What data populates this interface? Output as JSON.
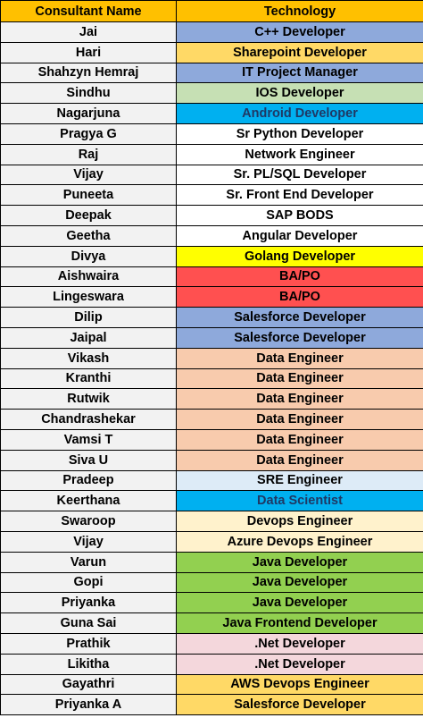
{
  "header": {
    "col_name": "Consultant Name",
    "col_tech": "Technology",
    "bg": "#ffc000"
  },
  "rows": [
    {
      "name": "Jai",
      "tech": "C++ Developer",
      "bg": "#8ea9db",
      "fg": "#000000"
    },
    {
      "name": "Hari",
      "tech": "Sharepoint Developer",
      "bg": "#ffd966",
      "fg": "#000000"
    },
    {
      "name": "Shahzyn Hemraj",
      "tech": "IT Project Manager",
      "bg": "#8ea9db",
      "fg": "#000000"
    },
    {
      "name": "Sindhu",
      "tech": "IOS Developer",
      "bg": "#c6e0b4",
      "fg": "#000000"
    },
    {
      "name": "Nagarjuna",
      "tech": "Android Developer",
      "bg": "#00b0f0",
      "fg": "#1f3864"
    },
    {
      "name": "Pragya G",
      "tech": "Sr Python Developer",
      "bg": "#ffffff",
      "fg": "#000000"
    },
    {
      "name": "Raj",
      "tech": "Network Engineer",
      "bg": "#ffffff",
      "fg": "#000000"
    },
    {
      "name": "Vijay",
      "tech": "Sr. PL/SQL Developer",
      "bg": "#ffffff",
      "fg": "#000000"
    },
    {
      "name": "Puneeta",
      "tech": "Sr. Front End Developer",
      "bg": "#ffffff",
      "fg": "#000000"
    },
    {
      "name": "Deepak",
      "tech": "SAP BODS",
      "bg": "#ffffff",
      "fg": "#000000"
    },
    {
      "name": "Geetha",
      "tech": "Angular Developer",
      "bg": "#ffffff",
      "fg": "#000000"
    },
    {
      "name": "Divya",
      "tech": "Golang Developer",
      "bg": "#ffff00",
      "fg": "#000000"
    },
    {
      "name": "Aishwaira",
      "tech": "BA/PO",
      "bg": "#ff5050",
      "fg": "#000000"
    },
    {
      "name": "Lingeswara",
      "tech": "BA/PO",
      "bg": "#ff5050",
      "fg": "#000000"
    },
    {
      "name": "Dilip",
      "tech": "Salesforce Developer",
      "bg": "#8ea9db",
      "fg": "#000000"
    },
    {
      "name": "Jaipal",
      "tech": "Salesforce Developer",
      "bg": "#8ea9db",
      "fg": "#000000"
    },
    {
      "name": "Vikash",
      "tech": "Data Engineer",
      "bg": "#f8cbad",
      "fg": "#000000"
    },
    {
      "name": "Kranthi",
      "tech": "Data Engineer",
      "bg": "#f8cbad",
      "fg": "#000000"
    },
    {
      "name": "Rutwik",
      "tech": "Data Engineer",
      "bg": "#f8cbad",
      "fg": "#000000"
    },
    {
      "name": "Chandrashekar",
      "tech": "Data Engineer",
      "bg": "#f8cbad",
      "fg": "#000000"
    },
    {
      "name": "Vamsi T",
      "tech": "Data Engineer",
      "bg": "#f8cbad",
      "fg": "#000000"
    },
    {
      "name": "Siva U",
      "tech": "Data Engineer",
      "bg": "#f8cbad",
      "fg": "#000000"
    },
    {
      "name": "Pradeep",
      "tech": "SRE Engineer",
      "bg": "#ddebf7",
      "fg": "#000000"
    },
    {
      "name": "Keerthana",
      "tech": "Data Scientist",
      "bg": "#00b0f0",
      "fg": "#1f3864"
    },
    {
      "name": "Swaroop",
      "tech": "Devops Engineer",
      "bg": "#fff2cc",
      "fg": "#000000"
    },
    {
      "name": "Vijay",
      "tech": "Azure Devops Engineer",
      "bg": "#fff2cc",
      "fg": "#000000"
    },
    {
      "name": "Varun",
      "tech": "Java Developer",
      "bg": "#92d050",
      "fg": "#000000"
    },
    {
      "name": "Gopi",
      "tech": "Java Developer",
      "bg": "#92d050",
      "fg": "#000000"
    },
    {
      "name": "Priyanka",
      "tech": "Java Developer",
      "bg": "#92d050",
      "fg": "#000000"
    },
    {
      "name": "Guna Sai",
      "tech": "Java Frontend Developer",
      "bg": "#92d050",
      "fg": "#000000"
    },
    {
      "name": "Prathik",
      "tech": ".Net Developer",
      "bg": "#f4d7dc",
      "fg": "#000000"
    },
    {
      "name": "Likitha",
      "tech": ".Net Developer",
      "bg": "#f4d7dc",
      "fg": "#000000"
    },
    {
      "name": "Gayathri",
      "tech": "AWS Devops Engineer",
      "bg": "#ffd966",
      "fg": "#000000"
    },
    {
      "name": "Priyanka A",
      "tech": "Salesforce Developer",
      "bg": "#ffd966",
      "fg": "#000000"
    }
  ]
}
